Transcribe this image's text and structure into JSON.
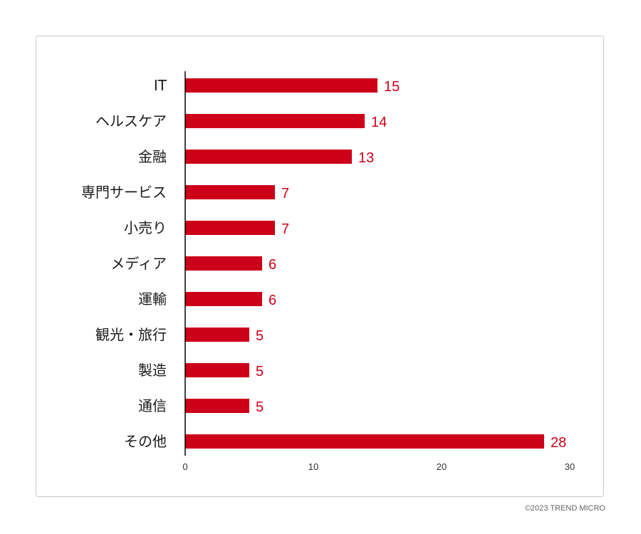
{
  "footer": {
    "copyright": "©2023 TREND MICRO"
  },
  "colors": {
    "bar": "#cc0019",
    "value_label": "#cc0019",
    "axis": "#000000"
  },
  "chart_data": {
    "type": "bar",
    "orientation": "horizontal",
    "categories": [
      "IT",
      "ヘルスケア",
      "金融",
      "専門サービス",
      "小売り",
      "メディア",
      "運輸",
      "観光・旅行",
      "製造",
      "通信",
      "その他"
    ],
    "values": [
      15,
      14,
      13,
      7,
      7,
      6,
      6,
      5,
      5,
      5,
      28
    ],
    "xlim": [
      0,
      30
    ],
    "xticks": [
      0,
      10,
      20,
      30
    ],
    "grid": false,
    "legend": "none",
    "data_labels": true
  }
}
